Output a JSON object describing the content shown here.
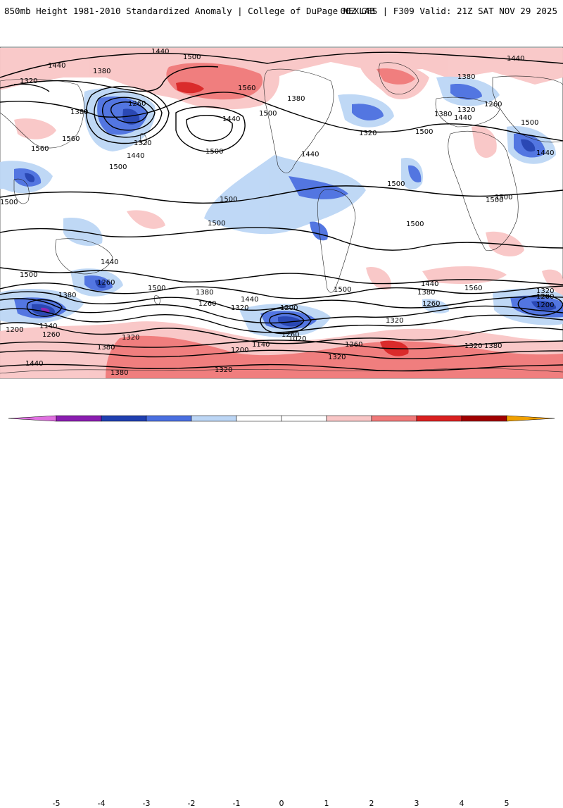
{
  "header": {
    "left_title": "850mb Height 1981-2010 Standardized Anomaly | College of DuPage NEXLAB",
    "right_title": "00Z GFS | F309 Valid: 21Z SAT NOV 29 2025"
  },
  "colors": {
    "neg5": "#e070e0",
    "neg4": "#8a1db0",
    "neg3": "#1f3fb0",
    "neg2": "#4a6fe0",
    "neg1": "#bcd6f5",
    "zero": "#ffffff",
    "pos1": "#f9c6c6",
    "pos2": "#f07878",
    "pos3": "#d92020",
    "pos4": "#a00000",
    "pos5": "#f0a000"
  },
  "colorbar": {
    "ticks": [
      "-5",
      "-4",
      "-3",
      "-2",
      "-1",
      "0",
      "1",
      "2",
      "3",
      "4",
      "5"
    ]
  },
  "contour_labels": [
    {
      "name": "1440",
      "text": "1440"
    },
    {
      "name": "1500",
      "text": "1500"
    },
    {
      "name": "1440",
      "text": "1440"
    },
    {
      "name": "1380",
      "text": "1380"
    },
    {
      "name": "1320",
      "text": "1320"
    },
    {
      "name": "1260",
      "text": "1260"
    },
    {
      "name": "1380",
      "text": "1380"
    },
    {
      "name": "1560",
      "text": "1560"
    },
    {
      "name": "1560",
      "text": "1560"
    },
    {
      "name": "1320",
      "text": "1320"
    },
    {
      "name": "1440",
      "text": "1440"
    },
    {
      "name": "1500",
      "text": "1500"
    },
    {
      "name": "1500",
      "text": "1500"
    },
    {
      "name": "1560",
      "text": "1560"
    },
    {
      "name": "1500",
      "text": "1500"
    },
    {
      "name": "1380",
      "text": "1380"
    },
    {
      "name": "1440",
      "text": "1440"
    },
    {
      "name": "1320",
      "text": "1320"
    },
    {
      "name": "1500",
      "text": "1500"
    },
    {
      "name": "1440",
      "text": "1440"
    },
    {
      "name": "1380",
      "text": "1380"
    },
    {
      "name": "1440",
      "text": "1440"
    },
    {
      "name": "1320",
      "text": "1320"
    },
    {
      "name": "1260",
      "text": "1260"
    },
    {
      "name": "1380",
      "text": "1380"
    },
    {
      "name": "1440",
      "text": "1440"
    },
    {
      "name": "1500",
      "text": "1500"
    },
    {
      "name": "1440",
      "text": "1440"
    },
    {
      "name": "1500",
      "text": "1500"
    },
    {
      "name": "1500",
      "text": "1500"
    },
    {
      "name": "1500",
      "text": "1500"
    },
    {
      "name": "1500",
      "text": "1500"
    },
    {
      "name": "1500",
      "text": "1500"
    },
    {
      "name": "1500",
      "text": "1500"
    },
    {
      "name": "1500",
      "text": "1500"
    },
    {
      "name": "1440",
      "text": "1440"
    },
    {
      "name": "1500",
      "text": "1500"
    },
    {
      "name": "1260",
      "text": "1260"
    },
    {
      "name": "1380",
      "text": "1380"
    },
    {
      "name": "1500",
      "text": "1500"
    },
    {
      "name": "1500",
      "text": "1500"
    },
    {
      "name": "1440",
      "text": "1440"
    },
    {
      "name": "1380",
      "text": "1380"
    },
    {
      "name": "1560",
      "text": "1560"
    },
    {
      "name": "1380",
      "text": "1380"
    },
    {
      "name": "1260",
      "text": "1260"
    },
    {
      "name": "1320",
      "text": "1320"
    },
    {
      "name": "1440",
      "text": "1440"
    },
    {
      "name": "1200",
      "text": "1200"
    },
    {
      "name": "1260",
      "text": "1260"
    },
    {
      "name": "1320",
      "text": "1320"
    },
    {
      "name": "1260",
      "text": "1260"
    },
    {
      "name": "1320",
      "text": "1320"
    },
    {
      "name": "1200",
      "text": "1200"
    },
    {
      "name": "1140",
      "text": "1140"
    },
    {
      "name": "1200",
      "text": "1200"
    },
    {
      "name": "1260",
      "text": "1260"
    },
    {
      "name": "1380",
      "text": "1380"
    },
    {
      "name": "1020",
      "text": "1020"
    },
    {
      "name": "1140",
      "text": "1140"
    },
    {
      "name": "1200",
      "text": "1200"
    },
    {
      "name": "1260",
      "text": "1260"
    },
    {
      "name": "1320",
      "text": "1320"
    },
    {
      "name": "1380",
      "text": "1380"
    },
    {
      "name": "1440",
      "text": "1440"
    },
    {
      "name": "1320",
      "text": "1320"
    },
    {
      "name": "1320",
      "text": "1320"
    },
    {
      "name": "1380",
      "text": "1380"
    },
    {
      "name": "1320",
      "text": "1320"
    },
    {
      "name": "1200",
      "text": "1200"
    }
  ]
}
